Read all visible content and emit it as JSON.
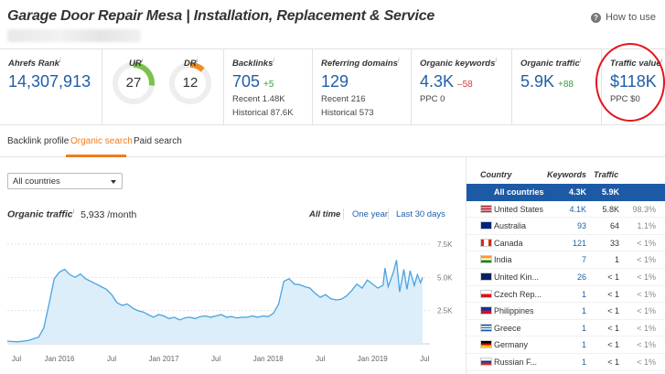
{
  "header": {
    "title": "Garage Door Repair Mesa | Installation, Replacement & Service",
    "how_to_use": "How to use"
  },
  "metrics": {
    "ahrefs_rank": {
      "label": "Ahrefs Rank",
      "value": "14,307,913"
    },
    "ur": {
      "label": "UR",
      "value": "27",
      "fill": 0.27,
      "color": "#7cc14e"
    },
    "dr": {
      "label": "DR",
      "value": "12",
      "fill": 0.12,
      "color": "#f08a24"
    },
    "backlinks": {
      "label": "Backlinks",
      "value": "705",
      "delta": "+5",
      "recent": "Recent 1.48K",
      "historical": "Historical 87.6K"
    },
    "referring_domains": {
      "label": "Referring domains",
      "value": "129",
      "recent": "Recent 216",
      "historical": "Historical 573"
    },
    "organic_keywords": {
      "label": "Organic keywords",
      "value": "4.3K",
      "delta": "–58",
      "ppc": "PPC 0"
    },
    "organic_traffic": {
      "label": "Organic traffic",
      "value": "5.9K",
      "delta": "+88"
    },
    "traffic_value": {
      "label": "Traffic value",
      "value": "$118K",
      "ppc": "PPC $0"
    }
  },
  "tabs": [
    {
      "label": "Backlink profile"
    },
    {
      "label": "Organic search"
    },
    {
      "label": "Paid search"
    }
  ],
  "filter": {
    "selected": "All countries"
  },
  "organic_traffic_header": {
    "label": "Organic traffic",
    "value": "5,933 /month"
  },
  "ranges": [
    {
      "label": "All time"
    },
    {
      "label": "One year"
    },
    {
      "label": "Last 30 days"
    }
  ],
  "chart_data": {
    "type": "area",
    "x_ticks": [
      "Jul",
      "Jan 2016",
      "Jul",
      "Jan 2017",
      "Jul",
      "Jan 2018",
      "Jul",
      "Jan 2019",
      "Jul"
    ],
    "y_ticks": [
      "7.5K",
      "5.0K",
      "2.5K"
    ],
    "ylim": [
      0,
      7500
    ],
    "color": "#4aa3df",
    "points": [
      [
        2015.5,
        200
      ],
      [
        2015.6,
        150
      ],
      [
        2015.7,
        250
      ],
      [
        2015.8,
        500
      ],
      [
        2015.85,
        1200
      ],
      [
        2015.9,
        3000
      ],
      [
        2015.95,
        4900
      ],
      [
        2016.0,
        5400
      ],
      [
        2016.05,
        5600
      ],
      [
        2016.1,
        5200
      ],
      [
        2016.15,
        5000
      ],
      [
        2016.2,
        5250
      ],
      [
        2016.25,
        4900
      ],
      [
        2016.3,
        4700
      ],
      [
        2016.35,
        4500
      ],
      [
        2016.4,
        4300
      ],
      [
        2016.45,
        4100
      ],
      [
        2016.5,
        3700
      ],
      [
        2016.55,
        3100
      ],
      [
        2016.6,
        2900
      ],
      [
        2016.65,
        3000
      ],
      [
        2016.7,
        2700
      ],
      [
        2016.75,
        2500
      ],
      [
        2016.8,
        2400
      ],
      [
        2016.85,
        2200
      ],
      [
        2016.9,
        2000
      ],
      [
        2016.95,
        2200
      ],
      [
        2017.0,
        2100
      ],
      [
        2017.05,
        1900
      ],
      [
        2017.1,
        2000
      ],
      [
        2017.15,
        1800
      ],
      [
        2017.2,
        1950
      ],
      [
        2017.25,
        2000
      ],
      [
        2017.3,
        1900
      ],
      [
        2017.35,
        2050
      ],
      [
        2017.4,
        2100
      ],
      [
        2017.45,
        2000
      ],
      [
        2017.5,
        2100
      ],
      [
        2017.55,
        2200
      ],
      [
        2017.6,
        2000
      ],
      [
        2017.65,
        2050
      ],
      [
        2017.7,
        1950
      ],
      [
        2017.75,
        2000
      ],
      [
        2017.8,
        2000
      ],
      [
        2017.85,
        2100
      ],
      [
        2017.9,
        2000
      ],
      [
        2017.95,
        2100
      ],
      [
        2018.0,
        2050
      ],
      [
        2018.05,
        2300
      ],
      [
        2018.1,
        3000
      ],
      [
        2018.15,
        4700
      ],
      [
        2018.2,
        4900
      ],
      [
        2018.25,
        4500
      ],
      [
        2018.3,
        4450
      ],
      [
        2018.35,
        4300
      ],
      [
        2018.4,
        4200
      ],
      [
        2018.45,
        3800
      ],
      [
        2018.5,
        3500
      ],
      [
        2018.55,
        3700
      ],
      [
        2018.6,
        3400
      ],
      [
        2018.65,
        3300
      ],
      [
        2018.7,
        3350
      ],
      [
        2018.75,
        3600
      ],
      [
        2018.8,
        4000
      ],
      [
        2018.85,
        4500
      ],
      [
        2018.9,
        4200
      ],
      [
        2018.95,
        4800
      ],
      [
        2019.0,
        4500
      ],
      [
        2019.05,
        4200
      ],
      [
        2019.1,
        4400
      ],
      [
        2019.12,
        5700
      ],
      [
        2019.15,
        4300
      ],
      [
        2019.2,
        5400
      ],
      [
        2019.23,
        6300
      ],
      [
        2019.26,
        3900
      ],
      [
        2019.3,
        5600
      ],
      [
        2019.33,
        4100
      ],
      [
        2019.36,
        5500
      ],
      [
        2019.4,
        4400
      ],
      [
        2019.43,
        5200
      ],
      [
        2019.46,
        4600
      ],
      [
        2019.48,
        5000
      ]
    ],
    "x_min": 2015.5,
    "x_max": 2019.55
  },
  "country_table": {
    "headers": {
      "country": "Country",
      "keywords": "Keywords",
      "traffic": "Traffic"
    },
    "rows": [
      {
        "name": "All countries",
        "kw": "4.3K",
        "tr": "5.9K",
        "pct": "",
        "flag": ""
      },
      {
        "name": "United States",
        "kw": "4.1K",
        "tr": "5.8K",
        "pct": "98.3%",
        "flag": "us"
      },
      {
        "name": "Australia",
        "kw": "93",
        "tr": "64",
        "pct": "1.1%",
        "flag": "au"
      },
      {
        "name": "Canada",
        "kw": "121",
        "tr": "33",
        "pct": "< 1%",
        "flag": "ca"
      },
      {
        "name": "India",
        "kw": "7",
        "tr": "1",
        "pct": "< 1%",
        "flag": "in"
      },
      {
        "name": "United Kin...",
        "kw": "26",
        "tr": "< 1",
        "pct": "< 1%",
        "flag": "gb"
      },
      {
        "name": "Czech Rep...",
        "kw": "1",
        "tr": "< 1",
        "pct": "< 1%",
        "flag": "cz"
      },
      {
        "name": "Philippines",
        "kw": "1",
        "tr": "< 1",
        "pct": "< 1%",
        "flag": "ph"
      },
      {
        "name": "Greece",
        "kw": "1",
        "tr": "< 1",
        "pct": "< 1%",
        "flag": "gr"
      },
      {
        "name": "Germany",
        "kw": "1",
        "tr": "< 1",
        "pct": "< 1%",
        "flag": "de"
      },
      {
        "name": "Russian F...",
        "kw": "1",
        "tr": "< 1",
        "pct": "< 1%",
        "flag": "ru"
      }
    ]
  }
}
